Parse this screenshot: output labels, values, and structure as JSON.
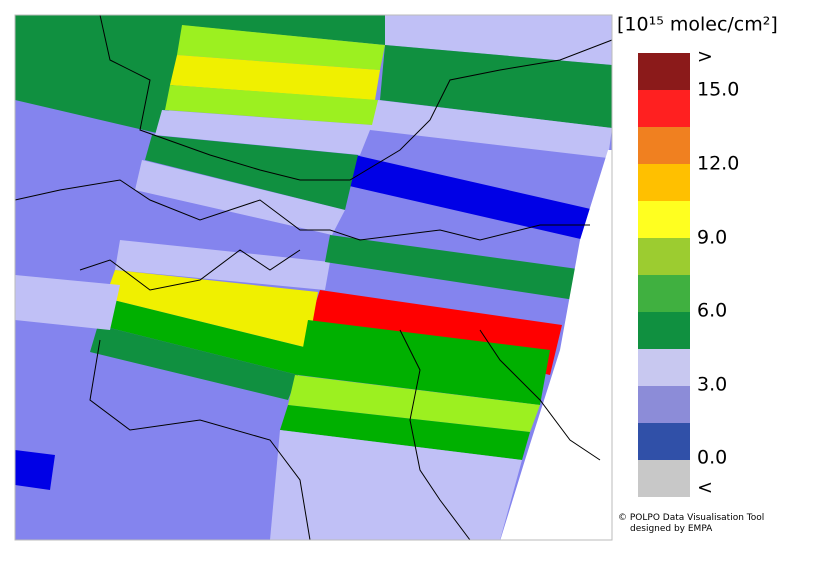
{
  "legend": {
    "title": "[10¹⁵ molec/cm²]",
    "labels": [
      ">",
      "15.0",
      "12.0",
      "9.0",
      "6.0",
      "3.0",
      "0.0",
      "<"
    ]
  },
  "credits": [
    "© POLPO Data Visualisation Tool",
    "designed by EMPA"
  ]
}
